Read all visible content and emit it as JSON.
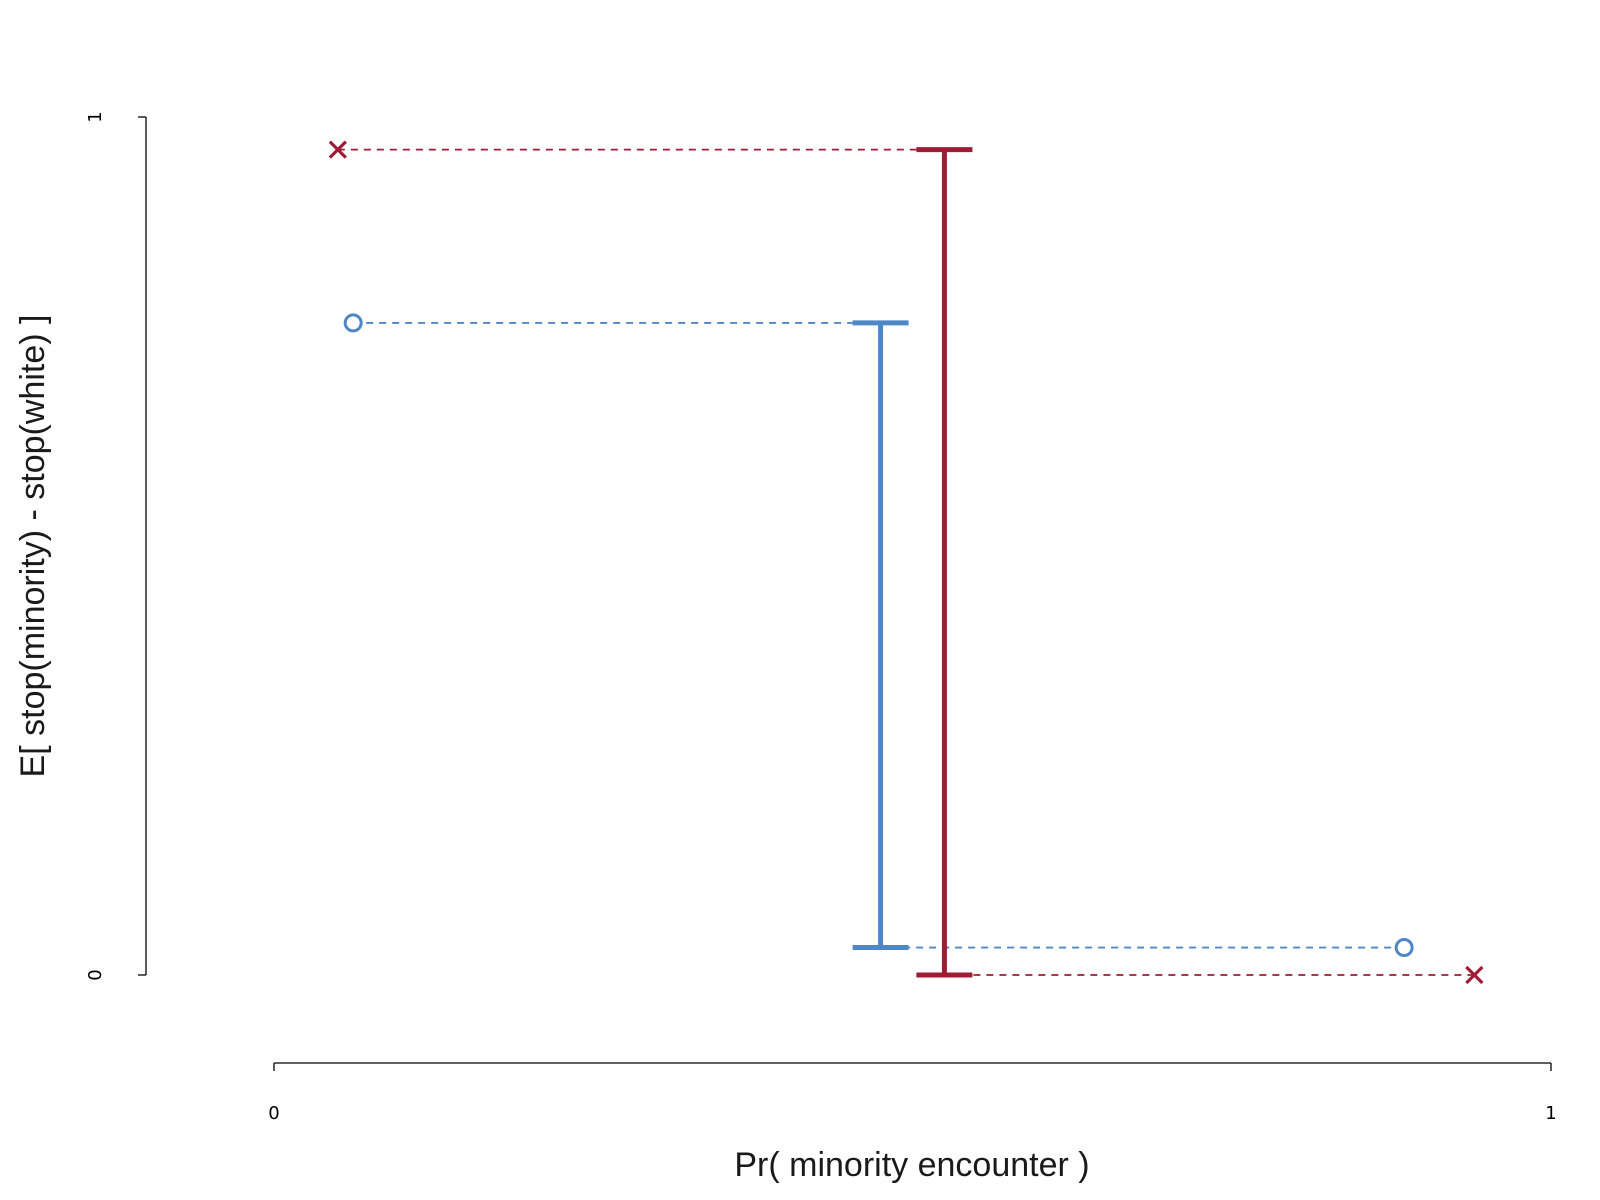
{
  "chart_data": {
    "type": "scatter",
    "title": "",
    "xlabel": "Pr( minority encounter )",
    "ylabel": "E[ stop(minority) - stop(white) ]",
    "xlim": [
      0,
      1
    ],
    "ylim": [
      0,
      1
    ],
    "x_ticks": [
      "0",
      "1"
    ],
    "y_ticks": [
      "0",
      "1"
    ],
    "grid": false,
    "series": [
      {
        "color": "#4f86c6",
        "marker": "circle",
        "interval": {
          "x": 0.475,
          "low": 0.032,
          "high": 0.76
        },
        "points": [
          {
            "x": 0.062,
            "y": 0.76
          },
          {
            "x": 0.885,
            "y": 0.032
          }
        ]
      },
      {
        "color": "#a01c35",
        "marker": "x",
        "interval": {
          "x": 0.525,
          "low": 0.0,
          "high": 0.962
        },
        "points": [
          {
            "x": 0.05,
            "y": 0.962
          },
          {
            "x": 0.94,
            "y": 0.0
          }
        ]
      }
    ]
  }
}
